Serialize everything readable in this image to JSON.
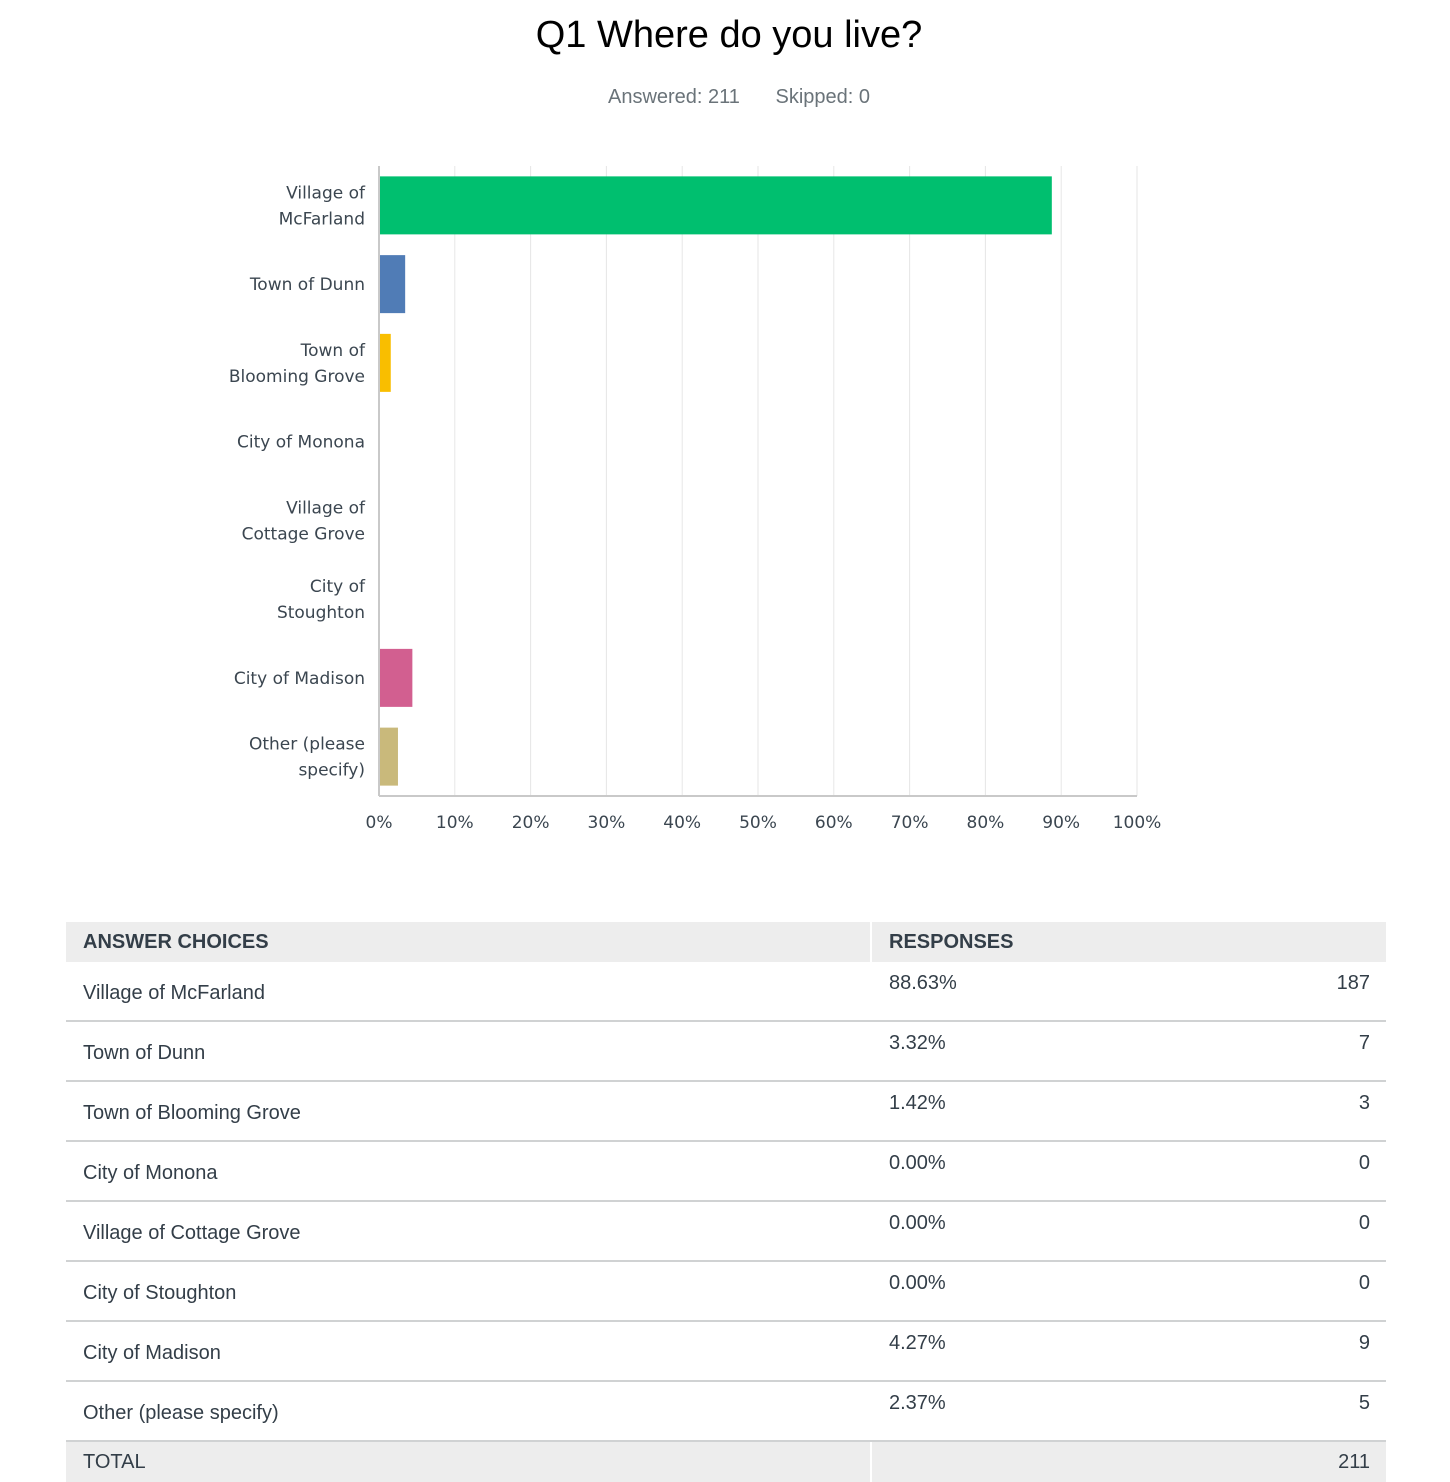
{
  "question": {
    "title": "Q1 Where do you live?",
    "answered": "Answered: 211",
    "skipped": "Skipped: 0"
  },
  "chart_data": {
    "type": "bar",
    "orientation": "horizontal",
    "categories": [
      [
        "Village of",
        "McFarland"
      ],
      [
        "Town of Dunn"
      ],
      [
        "Town of",
        "Blooming Grove"
      ],
      [
        "City of Monona"
      ],
      [
        "Village of",
        "Cottage Grove"
      ],
      [
        "City of",
        "Stoughton"
      ],
      [
        "City of Madison"
      ],
      [
        "Other (please",
        "specify)"
      ]
    ],
    "values": [
      88.63,
      3.32,
      1.42,
      0.0,
      0.0,
      0.0,
      4.27,
      2.37
    ],
    "colors": [
      "#00bf6f",
      "#507cb6",
      "#f9be00",
      "#6bc8cd",
      "#ff8b4f",
      "#7d5e90",
      "#d25f90",
      "#c9b97b"
    ],
    "xlim": [
      0,
      100
    ],
    "xticks": [
      "0%",
      "10%",
      "20%",
      "30%",
      "40%",
      "50%",
      "60%",
      "70%",
      "80%",
      "90%",
      "100%"
    ],
    "grid": true
  },
  "table": {
    "headers": [
      "ANSWER CHOICES",
      "RESPONSES"
    ],
    "rows": [
      {
        "choice": "Village of McFarland",
        "pct": "88.63%",
        "count": "187"
      },
      {
        "choice": "Town of Dunn",
        "pct": "3.32%",
        "count": "7"
      },
      {
        "choice": "Town of Blooming Grove",
        "pct": "1.42%",
        "count": "3"
      },
      {
        "choice": "City of Monona",
        "pct": "0.00%",
        "count": "0"
      },
      {
        "choice": "Village of Cottage Grove",
        "pct": "0.00%",
        "count": "0"
      },
      {
        "choice": "City of Stoughton",
        "pct": "0.00%",
        "count": "0"
      },
      {
        "choice": "City of Madison",
        "pct": "4.27%",
        "count": "9"
      },
      {
        "choice": "Other (please specify)",
        "pct": "2.37%",
        "count": "5"
      }
    ],
    "total_label": "TOTAL",
    "total_count": "211"
  }
}
